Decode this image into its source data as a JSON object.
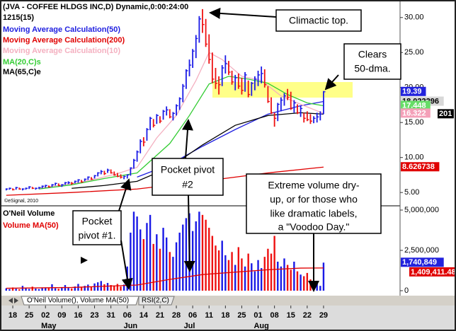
{
  "title": "(JVA - COFFEE HLDGS INC,D) Dynamic,0:00:24:00",
  "subtitle": "1215(15)",
  "copyright": "©eSignal, 2010",
  "tabs": [
    "O'Neil Volume(), Volume MA(50)",
    "RSI(2,C)"
  ],
  "annotations": [
    {
      "lines": [
        "Climactic top."
      ]
    },
    {
      "lines": [
        "Clears",
        "50-dma."
      ]
    },
    {
      "lines": [
        "Pocket pivot",
        "#2"
      ]
    },
    {
      "lines": [
        "Extreme volume dry-",
        "up, or for those who",
        "like dramatic labels,",
        "a \"Voodoo Day.\""
      ]
    },
    {
      "lines": [
        "Pocket",
        "pivot #1."
      ]
    }
  ],
  "chart_data": [
    {
      "type": "hlc",
      "categories": [
        null,
        null,
        "18",
        null,
        null,
        null,
        null,
        "25",
        null,
        null,
        null,
        null,
        "02",
        null,
        null,
        null,
        null,
        "09",
        null,
        null,
        null,
        null,
        "16",
        null,
        null,
        null,
        null,
        "23",
        null,
        null,
        null,
        null,
        "31",
        null,
        null,
        null,
        null,
        "06",
        null,
        null,
        null,
        null,
        "14",
        null,
        null,
        null,
        null,
        "21",
        null,
        null,
        null,
        null,
        "28",
        null,
        null,
        null,
        null,
        "06",
        null,
        null,
        null,
        null,
        "11",
        null,
        null,
        null,
        null,
        "18",
        null,
        null,
        null,
        null,
        "25",
        null,
        null,
        null,
        null,
        "01",
        null,
        null,
        null,
        null,
        "08",
        null,
        null,
        null,
        null,
        "15",
        null,
        null,
        null,
        null,
        "22",
        null,
        null,
        null,
        null,
        "29"
      ],
      "months": [
        null,
        null,
        null,
        null,
        null,
        null,
        null,
        null,
        null,
        null,
        null,
        null,
        null,
        "May",
        null,
        null,
        null,
        null,
        null,
        null,
        null,
        null,
        null,
        null,
        null,
        null,
        null,
        null,
        null,
        null,
        null,
        null,
        null,
        null,
        null,
        null,
        null,
        null,
        "Jun",
        null,
        null,
        null,
        null,
        null,
        null,
        null,
        null,
        null,
        null,
        null,
        null,
        null,
        null,
        null,
        null,
        null,
        "Jul",
        null,
        null,
        null,
        null,
        null,
        null,
        null,
        null,
        null,
        null,
        null,
        null,
        null,
        null,
        null,
        null,
        null,
        null,
        null,
        null,
        null,
        "Aug",
        null,
        null,
        null,
        null,
        null,
        null,
        null,
        null,
        null,
        null,
        null,
        null,
        null,
        null,
        null,
        null,
        null,
        null
      ],
      "high": [
        5.6,
        5.7,
        5.6,
        5.8,
        5.7,
        5.6,
        5.7,
        5.9,
        5.8,
        5.7,
        5.8,
        6.0,
        6.1,
        6.0,
        6.2,
        6.4,
        6.3,
        6.2,
        6.5,
        6.6,
        6.5,
        6.7,
        6.9,
        6.8,
        7.0,
        7.3,
        7.2,
        7.5,
        7.9,
        8.2,
        8.1,
        8.4,
        8.3,
        8.0,
        7.8,
        7.6,
        7.4,
        7.6,
        8.6,
        9.8,
        11.0,
        12.6,
        12.9,
        14.2,
        15.8,
        15.5,
        16.2,
        15.9,
        16.8,
        17.3,
        16.9,
        16.5,
        17.6,
        18.6,
        20.5,
        22.6,
        24.0,
        25.5,
        27.5,
        30.2,
        31.2,
        29.8,
        27.6,
        25.0,
        22.8,
        21.6,
        23.2,
        24.6,
        23.8,
        22.4,
        21.8,
        22.0,
        21.4,
        22.2,
        21.0,
        20.8,
        21.6,
        22.4,
        23.0,
        22.6,
        20.2,
        18.6,
        16.4,
        17.8,
        18.6,
        19.2,
        19.8,
        19.4,
        18.2,
        17.6,
        17.4,
        16.4,
        16.6,
        16.2,
        15.9,
        16.4,
        16.6,
        19.5
      ],
      "low": [
        5.3,
        5.4,
        5.3,
        5.4,
        5.4,
        5.3,
        5.4,
        5.5,
        5.5,
        5.4,
        5.5,
        5.6,
        5.7,
        5.7,
        5.8,
        6.0,
        5.9,
        5.8,
        6.1,
        6.2,
        6.1,
        6.3,
        6.4,
        6.4,
        6.6,
        6.8,
        6.8,
        7.0,
        7.3,
        7.6,
        7.5,
        7.8,
        7.7,
        7.4,
        7.2,
        7.0,
        6.9,
        7.0,
        7.4,
        8.4,
        9.4,
        10.6,
        11.6,
        12.4,
        13.9,
        14.3,
        14.8,
        14.9,
        15.4,
        16.0,
        15.6,
        15.3,
        16.0,
        16.8,
        17.9,
        19.8,
        21.6,
        22.8,
        24.2,
        26.4,
        27.8,
        25.8,
        23.4,
        20.6,
        19.8,
        19.0,
        20.2,
        22.0,
        21.8,
        20.4,
        19.6,
        19.8,
        19.0,
        19.4,
        18.6,
        18.8,
        19.6,
        20.2,
        20.6,
        20.0,
        17.8,
        16.2,
        14.4,
        15.2,
        16.6,
        17.4,
        18.2,
        16.8,
        16.4,
        16.2,
        15.8,
        15.0,
        15.2,
        14.8,
        14.9,
        15.0,
        15.3,
        16.2
      ],
      "close": [
        5.5,
        5.6,
        5.4,
        5.7,
        5.5,
        5.5,
        5.6,
        5.8,
        5.6,
        5.6,
        5.7,
        5.9,
        6.0,
        5.8,
        6.1,
        6.3,
        6.0,
        6.1,
        6.4,
        6.4,
        6.3,
        6.6,
        6.8,
        6.5,
        6.9,
        7.2,
        6.9,
        7.4,
        7.8,
        8.0,
        7.7,
        8.2,
        7.8,
        7.5,
        7.3,
        7.2,
        7.3,
        7.5,
        8.5,
        9.6,
        10.8,
        12.3,
        12.2,
        14.0,
        15.6,
        14.6,
        16.0,
        15.2,
        16.6,
        16.8,
        15.8,
        16.3,
        17.4,
        18.4,
        20.2,
        22.4,
        23.2,
        25.2,
        27.0,
        29.8,
        29.0,
        26.2,
        24.0,
        21.2,
        20.6,
        20.4,
        22.8,
        23.4,
        22.2,
        20.8,
        21.4,
        20.2,
        19.6,
        21.8,
        19.0,
        20.6,
        21.2,
        21.8,
        22.0,
        20.4,
        18.0,
        16.4,
        15.6,
        17.6,
        18.2,
        18.8,
        18.6,
        17.0,
        17.8,
        16.4,
        17.0,
        15.6,
        15.4,
        15.2,
        15.6,
        15.8,
        16.2,
        19.39
      ],
      "up_color": "#1a1ae6",
      "down_color": "#ee1111",
      "end_label": "19.39",
      "end_color": "#2222dd",
      "ylim": [
        3.2,
        32.3
      ],
      "yticks": [
        {
          "value": 5,
          "label": "5.00"
        },
        {
          "value": 10,
          "label": "10.00"
        },
        {
          "value": 15,
          "label": "15.00"
        },
        {
          "value": 20,
          "label": "20.00"
        },
        {
          "value": 25,
          "label": "25.00"
        },
        {
          "value": 30,
          "label": "30.00"
        }
      ],
      "series": [
        {
          "name": "Moving Average Calculation(50)",
          "color": "#2020e0",
          "x": [
            40,
            50,
            60,
            70,
            80,
            90,
            97
          ],
          "values": [
            7.2,
            9.0,
            11.6,
            14.0,
            16.2,
            17.4,
            18.0
          ],
          "end_label": "18.022296",
          "end_color": "#d8d8d8",
          "end_text": "#000000"
        },
        {
          "name": "Moving Average Calculation(200)",
          "color": "#e00000",
          "x": [
            0,
            20,
            40,
            60,
            80,
            97
          ],
          "values": [
            4.6,
            5.0,
            5.5,
            6.6,
            7.8,
            8.63
          ],
          "end_label": "8.626738",
          "end_color": "#e00000",
          "end_text": "#ffffff"
        },
        {
          "name": "Moving Average Calculation(10)",
          "color": "#f4b0c0",
          "x": [
            10,
            16,
            22,
            28,
            34,
            40,
            46,
            52,
            58,
            62,
            66,
            72,
            78,
            84,
            90,
            97
          ],
          "values": [
            5.6,
            6.0,
            6.4,
            7.0,
            7.7,
            8.6,
            12.8,
            16.0,
            21.0,
            25.0,
            24.0,
            21.6,
            21.0,
            18.8,
            17.6,
            16.3
          ],
          "end_label": "16.322",
          "end_color": "#f4a0b8",
          "end_text": "#ffffff"
        },
        {
          "name": "MA(20,C)s",
          "color": "#33cc33",
          "x": [
            10,
            20,
            30,
            40,
            50,
            56,
            62,
            68,
            74,
            80,
            86,
            92,
            97
          ],
          "values": [
            5.5,
            6.1,
            7.0,
            7.8,
            12.0,
            16.0,
            20.5,
            21.6,
            21.2,
            20.6,
            19.0,
            17.8,
            17.4
          ],
          "end_label": "17.448",
          "end_color": "#66dd66",
          "end_text": "#ffffff"
        },
        {
          "name": "MA(65,C)e",
          "color": "#000000",
          "x": [
            20,
            30,
            40,
            50,
            60,
            70,
            80,
            90,
            97
          ],
          "values": [
            5.6,
            6.0,
            6.6,
            8.6,
            11.8,
            14.6,
            16.0,
            16.4,
            16.2
          ],
          "end_label": "201",
          "end_color": "#000000",
          "end_text": "#ffffff"
        }
      ]
    },
    {
      "type": "bar",
      "values_name": "O'Neil Volume",
      "values": [
        150000,
        100000,
        200000,
        120000,
        90000,
        300000,
        150000,
        110000,
        250000,
        130000,
        100000,
        180000,
        200000,
        160000,
        400000,
        150000,
        120000,
        220000,
        350000,
        180000,
        140000,
        260000,
        420000,
        200000,
        300000,
        380000,
        250000,
        450000,
        520000,
        600000,
        400000,
        480000,
        350000,
        300000,
        420000,
        260000,
        380000,
        1500000,
        3600000,
        4900000,
        4600000,
        3800000,
        3200000,
        4200000,
        4700000,
        2900000,
        3500000,
        2600000,
        3900000,
        3300000,
        2400000,
        2100000,
        3000000,
        3600000,
        4100000,
        4500000,
        4800000,
        3700000,
        4300000,
        4900000,
        4700000,
        4400000,
        3900000,
        3400000,
        2800000,
        2500000,
        3100000,
        2200000,
        1900000,
        2400000,
        1600000,
        2700000,
        2000000,
        1500000,
        2300000,
        1700000,
        1200000,
        1900000,
        1400000,
        2100000,
        2600000,
        2300000,
        3400000,
        1800000,
        1500000,
        2000000,
        1600000,
        1300000,
        1800000,
        1200000,
        1000000,
        900000,
        1100000,
        700000,
        600000,
        500000,
        300000,
        1740849
      ],
      "end_label": "1,740,849",
      "end_color": "#2222dd",
      "ylim": [
        -307000,
        5220000
      ],
      "yticks": [
        0,
        {
          "value": 2500000,
          "label": "2,500,000"
        },
        {
          "value": 5000000,
          "label": "5,000,000"
        }
      ],
      "series": [
        {
          "name": "Volume MA(50)",
          "color": "#e00000",
          "x": [
            0,
            20,
            40,
            50,
            60,
            70,
            80,
            90,
            97
          ],
          "values": [
            150000,
            200000,
            350000,
            700000,
            1000000,
            1150000,
            1300000,
            1400000,
            1409411.48
          ],
          "end_label": "1,409,411.48",
          "end_color": "#e00000",
          "end_text": "#ffffff"
        }
      ]
    }
  ]
}
